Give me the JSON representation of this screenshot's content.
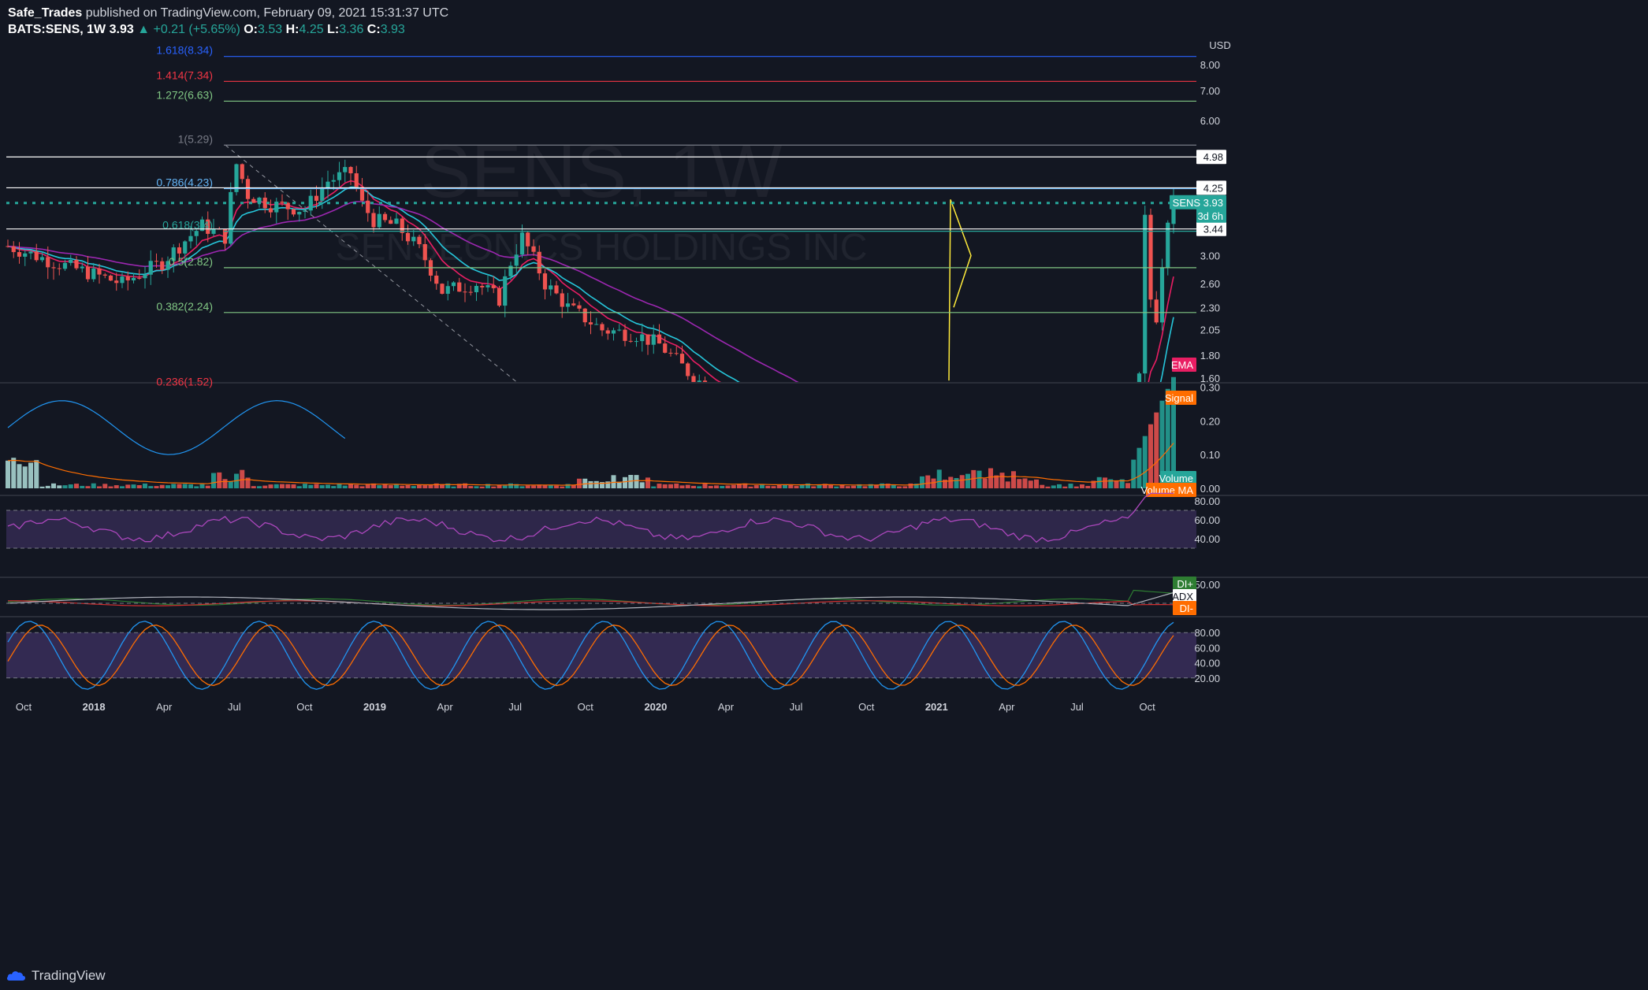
{
  "header": {
    "author": "Safe_Trades",
    "published": "published on TradingView.com, February 09, 2021 15:31:37 UTC",
    "symbol": "BATS:SENS, 1W",
    "last": "3.93",
    "change": "▲ +0.21 (+5.65%)",
    "o_label": "O:",
    "o": "3.53",
    "h_label": "H:",
    "h": "4.25",
    "l_label": "L:",
    "l": "3.36",
    "c_label": "C:",
    "c": "3.93"
  },
  "watermark": {
    "line1": "SENS, 1W",
    "line2": "SENSEONICS HOLDINGS INC"
  },
  "footer": {
    "brand": "TradingView"
  },
  "colors": {
    "background": "#131722",
    "up": "#26a69a",
    "down": "#ef5350",
    "ema_pink": "#e91e63",
    "ema_cyan": "#26c6da",
    "ema_purple": "#9c27b0",
    "rsi": "#ab47bc",
    "stoch_k": "#2196f3",
    "stoch_d": "#ff6d00"
  },
  "chart_data": [
    {
      "type": "candlestick",
      "currency": "USD",
      "price_ticks": [
        "8.00",
        "7.00",
        "6.00",
        "4.98",
        "4.25",
        "3.44",
        "3.00",
        "2.60",
        "2.30",
        "2.05",
        "1.80",
        "1.60"
      ],
      "x_ticks": [
        "Oct",
        "2018",
        "Apr",
        "Jul",
        "Oct",
        "2019",
        "Apr",
        "Jul",
        "Oct",
        "2020",
        "Apr",
        "Jul",
        "Oct",
        "2021",
        "Apr",
        "Jul",
        "Oct"
      ],
      "last_price": {
        "label": "SENS",
        "value": "3.93",
        "countdown": "3d 6h"
      },
      "horizontal_levels": [
        "4.98",
        "4.25",
        "3.44"
      ],
      "fibonacci": [
        {
          "label": "1.618(8.34)",
          "value": 8.34,
          "color": "#2962ff"
        },
        {
          "label": "1.414(7.34)",
          "value": 7.34,
          "color": "#f23645"
        },
        {
          "label": "1.272(6.63)",
          "value": 6.63,
          "color": "#81c784"
        },
        {
          "label": "1(5.29)",
          "value": 5.29,
          "color": "#787b86"
        },
        {
          "label": "0.786(4.23)",
          "value": 4.23,
          "color": "#64b5f6"
        },
        {
          "label": "0.618(3.4)",
          "value": 3.4,
          "color": "#26a69a"
        },
        {
          "label": "0.5(2.82)",
          "value": 2.82,
          "color": "#81c784"
        },
        {
          "label": "0.382(2.24)",
          "value": 2.24,
          "color": "#81c784"
        },
        {
          "label": "0.236(1.52)",
          "value": 1.52,
          "color": "#f23645"
        }
      ]
    },
    {
      "type": "bar",
      "name": "Volume panel",
      "y_ticks": [
        "0.30",
        "0.20",
        "0.10",
        "0.00"
      ],
      "legend": [
        "EMA",
        "Signal",
        "Volume",
        "Volume MA"
      ]
    },
    {
      "type": "line",
      "name": "RSI panel",
      "y_ticks": [
        "80.00",
        "60.00",
        "40.00"
      ],
      "band": [
        70,
        30
      ]
    },
    {
      "type": "line",
      "name": "DMI panel",
      "y_ticks": [
        "50.00"
      ],
      "legend": [
        "DI+",
        "ADX",
        "DI-"
      ]
    },
    {
      "type": "line",
      "name": "Stoch RSI panel",
      "y_ticks": [
        "80.00",
        "60.00",
        "40.00",
        "20.00"
      ],
      "band": [
        80,
        20
      ]
    }
  ]
}
